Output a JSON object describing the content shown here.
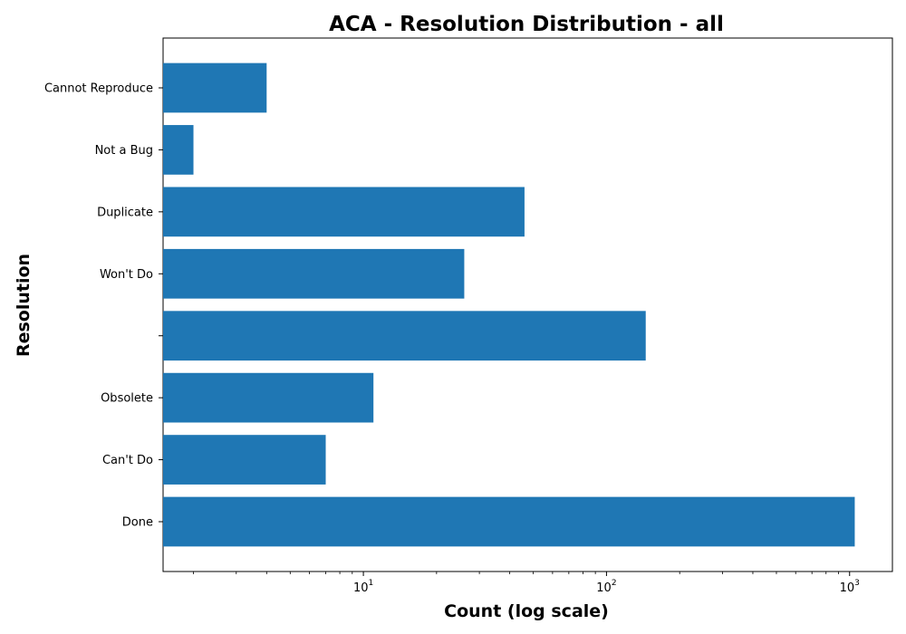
{
  "chart_data": {
    "type": "bar",
    "orientation": "horizontal",
    "title": "ACA - Resolution Distribution - all",
    "xlabel": "Count (log scale)",
    "ylabel": "Resolution",
    "x_scale": "log",
    "xlim": [
      1.5,
      1500
    ],
    "x_ticks": [
      {
        "value": 10,
        "base": "10",
        "exp": "1"
      },
      {
        "value": 100,
        "base": "10",
        "exp": "2"
      },
      {
        "value": 1000,
        "base": "10",
        "exp": "3"
      }
    ],
    "categories": [
      "Done",
      "Can't Do",
      "Obsolete",
      "",
      "Won't Do",
      "Duplicate",
      "Not a Bug",
      "Cannot Reproduce"
    ],
    "values": [
      1050,
      7,
      11,
      145,
      26,
      46,
      2,
      4
    ],
    "bar_color": "#1f77b4",
    "grid": false,
    "legend": "none"
  }
}
